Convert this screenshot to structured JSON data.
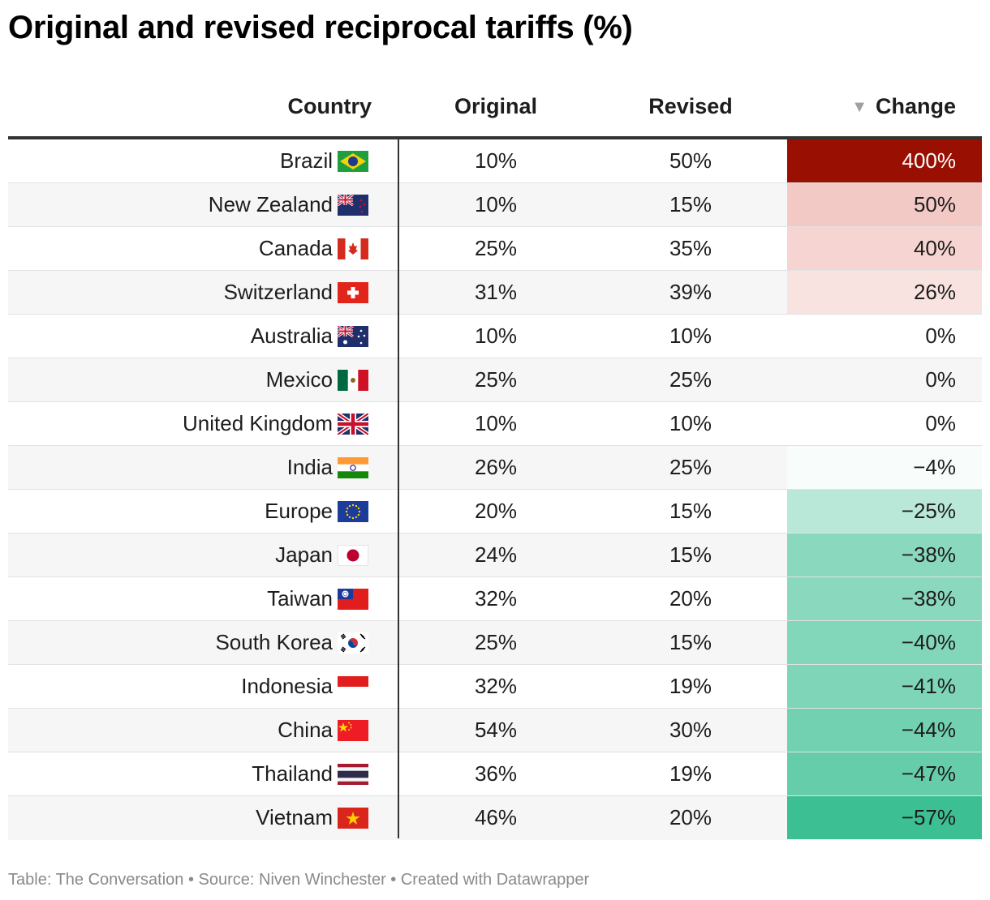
{
  "title": "Original and revised reciprocal tariffs (%)",
  "footer": "Table: The Conversation • Source: Niven Winchester • Created with Datawrapper",
  "columns": {
    "country": "Country",
    "original": "Original",
    "revised": "Revised",
    "change": "Change"
  },
  "sort_icon": "sort-down-icon",
  "colors": {
    "increase_max": "#990f02",
    "decrease_max": "#3cbf93",
    "neutral": "#ffffff"
  },
  "chart_data": {
    "type": "table",
    "title": "Original and revised reciprocal tariffs (%)",
    "columns": [
      "Country",
      "Original",
      "Revised",
      "Change"
    ],
    "rows": [
      {
        "country": "Brazil",
        "flag": "flag-brazil",
        "original": "10%",
        "revised": "50%",
        "change": "400%",
        "change_value": 400
      },
      {
        "country": "New Zealand",
        "flag": "flag-new-zealand",
        "original": "10%",
        "revised": "15%",
        "change": "50%",
        "change_value": 50
      },
      {
        "country": "Canada",
        "flag": "flag-canada",
        "original": "25%",
        "revised": "35%",
        "change": "40%",
        "change_value": 40
      },
      {
        "country": "Switzerland",
        "flag": "flag-switzerland",
        "original": "31%",
        "revised": "39%",
        "change": "26%",
        "change_value": 26
      },
      {
        "country": "Australia",
        "flag": "flag-australia",
        "original": "10%",
        "revised": "10%",
        "change": "0%",
        "change_value": 0
      },
      {
        "country": "Mexico",
        "flag": "flag-mexico",
        "original": "25%",
        "revised": "25%",
        "change": "0%",
        "change_value": 0
      },
      {
        "country": "United Kingdom",
        "flag": "flag-united-kingdom",
        "original": "10%",
        "revised": "10%",
        "change": "0%",
        "change_value": 0
      },
      {
        "country": "India",
        "flag": "flag-india",
        "original": "26%",
        "revised": "25%",
        "change": "−4%",
        "change_value": -4
      },
      {
        "country": "Europe",
        "flag": "flag-europe",
        "original": "20%",
        "revised": "15%",
        "change": "−25%",
        "change_value": -25
      },
      {
        "country": "Japan",
        "flag": "flag-japan",
        "original": "24%",
        "revised": "15%",
        "change": "−38%",
        "change_value": -38
      },
      {
        "country": "Taiwan",
        "flag": "flag-taiwan",
        "original": "32%",
        "revised": "20%",
        "change": "−38%",
        "change_value": -38
      },
      {
        "country": "South Korea",
        "flag": "flag-south-korea",
        "original": "25%",
        "revised": "15%",
        "change": "−40%",
        "change_value": -40
      },
      {
        "country": "Indonesia",
        "flag": "flag-indonesia",
        "original": "32%",
        "revised": "19%",
        "change": "−41%",
        "change_value": -41
      },
      {
        "country": "China",
        "flag": "flag-china",
        "original": "54%",
        "revised": "30%",
        "change": "−44%",
        "change_value": -44
      },
      {
        "country": "Thailand",
        "flag": "flag-thailand",
        "original": "36%",
        "revised": "19%",
        "change": "−47%",
        "change_value": -47
      },
      {
        "country": "Vietnam",
        "flag": "flag-vietnam",
        "original": "46%",
        "revised": "20%",
        "change": "−57%",
        "change_value": -57
      }
    ]
  }
}
